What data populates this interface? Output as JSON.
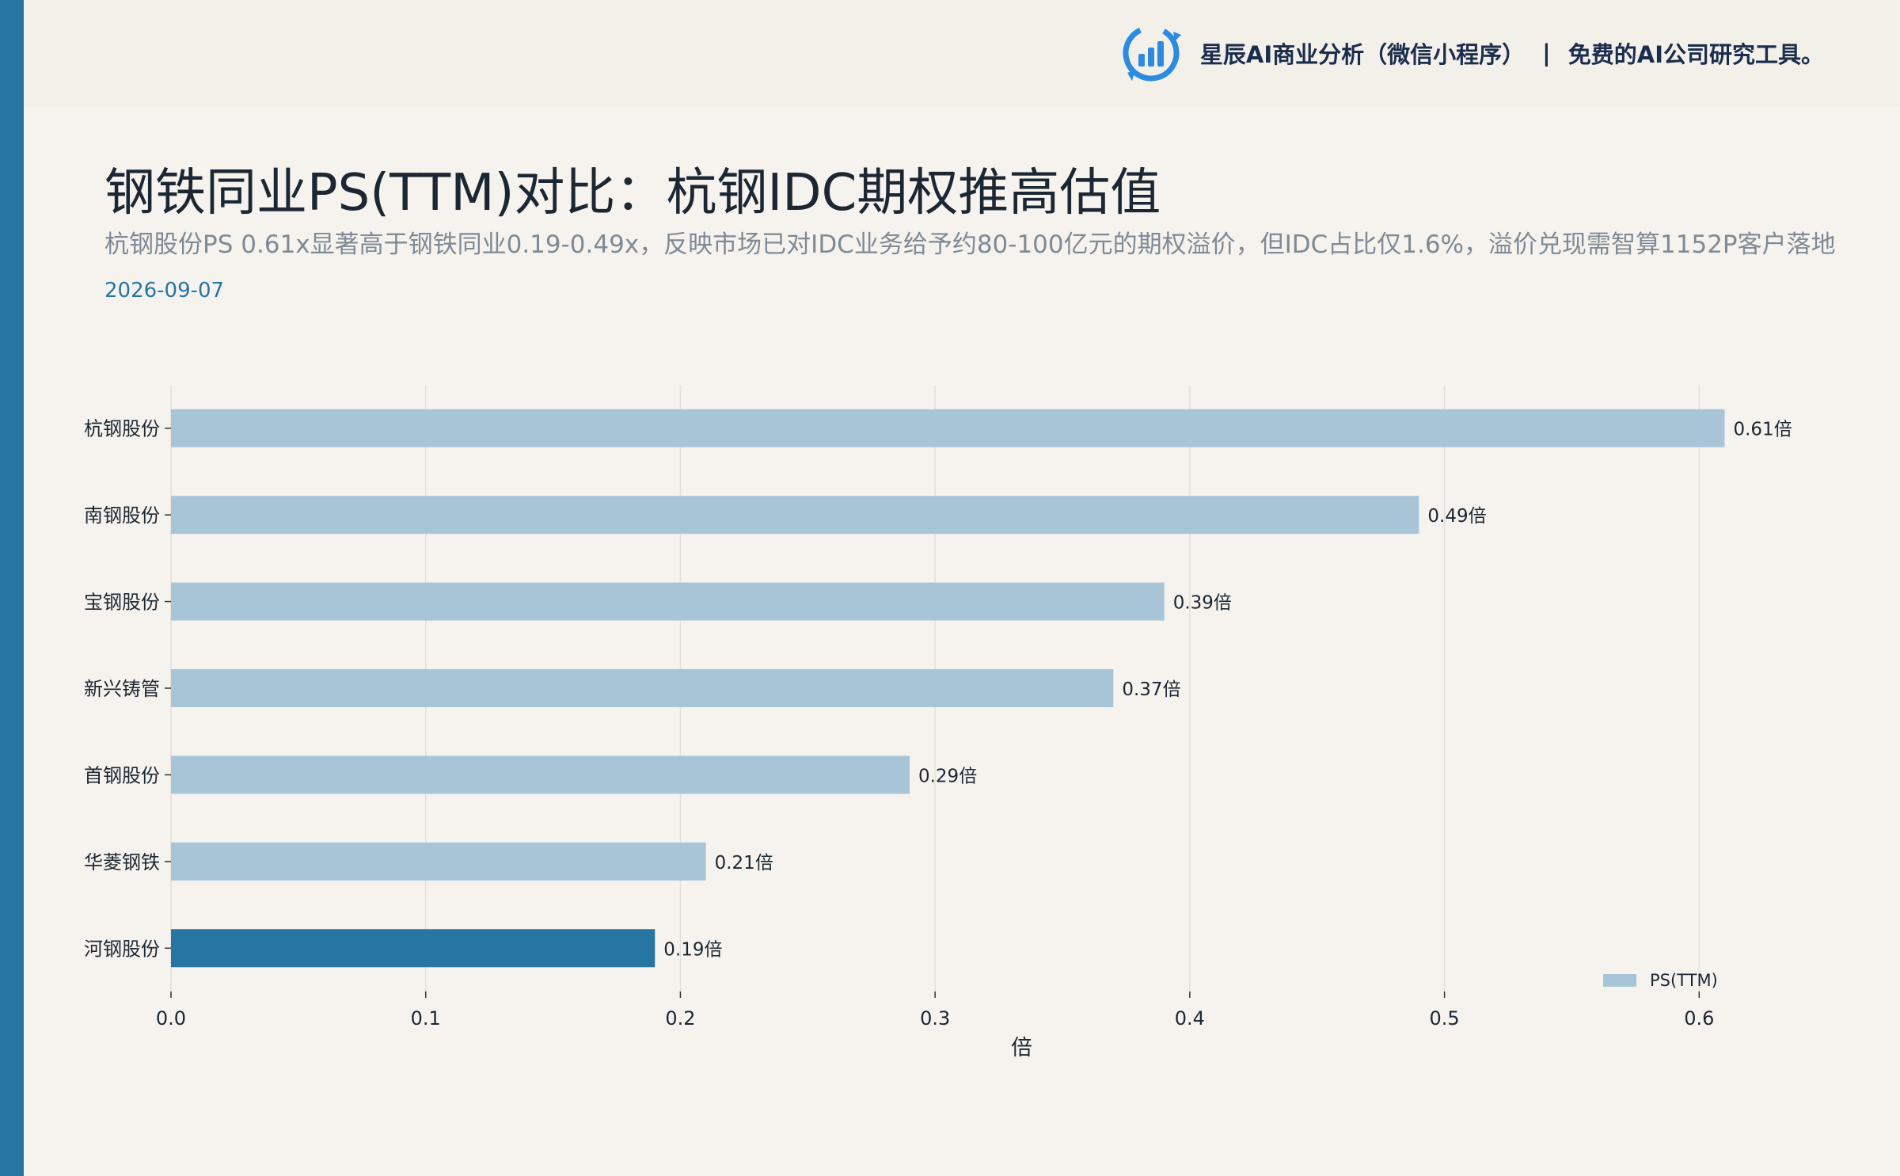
{
  "header": {
    "brand_name": "星辰AI商业分析（微信小程序）",
    "separator": "|",
    "brand_slogan": "免费的AI公司研究工具。",
    "logo_icon": "bar-chart-refresh-icon"
  },
  "page": {
    "title": "钢铁同业PS(TTM)对比：杭钢IDC期权推高估值",
    "subtitle": "杭钢股份PS 0.61x显著高于钢铁同业0.19-0.49x，反映市场已对IDC业务给予约80-100亿元的期权溢价，但IDC占比仅1.6%，溢价兑现需智算1152P客户落地",
    "date": "2026-09-07"
  },
  "colors": {
    "accent": "#2775a3",
    "bar_default": "#a8c5d8",
    "bar_highlight": "#2775a3",
    "background": "#f6f3ee"
  },
  "chart_data": {
    "type": "bar",
    "orientation": "horizontal",
    "categories": [
      "杭钢股份",
      "南钢股份",
      "宝钢股份",
      "新兴铸管",
      "首钢股份",
      "华菱钢铁",
      "河钢股份"
    ],
    "series": [
      {
        "name": "PS(TTM)",
        "values": [
          0.61,
          0.49,
          0.39,
          0.37,
          0.29,
          0.21,
          0.19
        ]
      }
    ],
    "value_labels": [
      "0.61倍",
      "0.49倍",
      "0.39倍",
      "0.37倍",
      "0.29倍",
      "0.21倍",
      "0.19倍"
    ],
    "highlight_category": "河钢股份",
    "xlabel": "倍",
    "ylabel": "",
    "xlim": [
      0,
      0.64
    ],
    "xticks": [
      0.0,
      0.1,
      0.2,
      0.3,
      0.4,
      0.5,
      0.6
    ],
    "xtick_labels": [
      "0.0",
      "0.1",
      "0.2",
      "0.3",
      "0.4",
      "0.5",
      "0.6"
    ],
    "grid": "vertical",
    "legend": {
      "position": "bottom-right",
      "entries": [
        "PS(TTM)"
      ]
    }
  }
}
